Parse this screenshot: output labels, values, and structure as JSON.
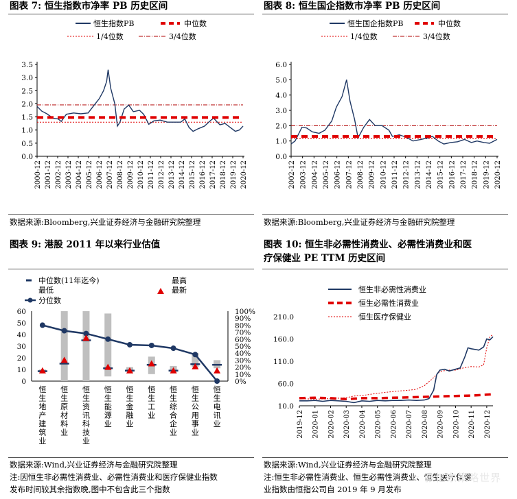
{
  "titles": {
    "c7": "图表 7:  恒生指数市净率 PB 历史区间",
    "c8": "图表 8:  恒生国企指数市净率 PB 历史区间",
    "c9": "图表 9:  港股 2011 年以来行业估值",
    "c10_line1": "图表 10:  恒生非必需性消费业、必需性消费业和医",
    "c10_line2": "疗保健业 PE TTM 历史区间"
  },
  "sources": {
    "c7": "数据来源:Bloomberg,兴业证券经济与金融研究院整理",
    "c8": "数据来源:Bloomberg,兴业证券经济与金融研究院整理",
    "c9": "数据来源:Wind,兴业证券经济与金融研究院整理",
    "c10": "数据来源:Wind,兴业证券经济与金融研究院整理"
  },
  "notes": {
    "left_line1": "注:因恒生非必需性消费业、必需性消费业和医疗保健业指数",
    "left_line2": "发布时间较其余指数晚,图中不包含此三个指数",
    "right_line1": "注:恒生非必需性消费业、恒生必需性消费业、恒生医疗保健",
    "right_line2": "业指数由恒指公司自 2019 年 9 月发布"
  },
  "watermark": "☆ 张忆东策略世界",
  "colors": {
    "navy": "#1f3864",
    "red": "#e00000",
    "gray": "#bfbfbf"
  },
  "chart_data": [
    {
      "id": "c7",
      "type": "line",
      "series": [
        {
          "name": "恒生指数PB",
          "kind": "data"
        },
        {
          "name": "中位数",
          "kind": "median",
          "value": 1.48
        },
        {
          "name": "1/4位数",
          "kind": "q1",
          "value": 1.3
        },
        {
          "name": "3/4位数",
          "kind": "q3",
          "value": 1.96
        }
      ],
      "x": [
        "2000-12",
        "2001-12",
        "2002-12",
        "2003-12",
        "2004-12",
        "2005-12",
        "2006-12",
        "2007-12",
        "2008-12",
        "2009-12",
        "2010-12",
        "2011-12",
        "2012-12",
        "2013-12",
        "2014-12",
        "2015-12",
        "2016-12",
        "2017-12",
        "2018-12",
        "2019-12",
        "2020-12"
      ],
      "yticks": [
        "0.0",
        "0.5",
        "1.0",
        "1.5",
        "2.0",
        "2.5",
        "3.0",
        "3.5"
      ],
      "ylim": [
        0,
        3.5
      ],
      "pb": [
        [
          2000.95,
          1.9
        ],
        [
          2001.4,
          1.72
        ],
        [
          2001.9,
          1.62
        ],
        [
          2002.5,
          1.45
        ],
        [
          2003.0,
          1.42
        ],
        [
          2003.3,
          1.33
        ],
        [
          2003.8,
          1.6
        ],
        [
          2004.5,
          1.65
        ],
        [
          2005.2,
          1.62
        ],
        [
          2005.9,
          1.65
        ],
        [
          2006.5,
          1.95
        ],
        [
          2007.0,
          2.2
        ],
        [
          2007.4,
          2.5
        ],
        [
          2007.7,
          2.85
        ],
        [
          2007.85,
          3.3
        ],
        [
          2008.1,
          2.6
        ],
        [
          2008.5,
          2.0
        ],
        [
          2008.75,
          1.15
        ],
        [
          2009.0,
          1.3
        ],
        [
          2009.4,
          1.8
        ],
        [
          2009.85,
          1.95
        ],
        [
          2010.3,
          1.7
        ],
        [
          2010.9,
          1.75
        ],
        [
          2011.3,
          1.6
        ],
        [
          2011.8,
          1.22
        ],
        [
          2012.3,
          1.35
        ],
        [
          2012.9,
          1.38
        ],
        [
          2013.6,
          1.3
        ],
        [
          2014.3,
          1.3
        ],
        [
          2014.9,
          1.3
        ],
        [
          2015.3,
          1.42
        ],
        [
          2015.7,
          1.1
        ],
        [
          2016.1,
          0.95
        ],
        [
          2016.6,
          1.05
        ],
        [
          2017.2,
          1.15
        ],
        [
          2017.9,
          1.4
        ],
        [
          2018.1,
          1.45
        ],
        [
          2018.7,
          1.2
        ],
        [
          2019.2,
          1.25
        ],
        [
          2019.7,
          1.1
        ],
        [
          2020.2,
          0.95
        ],
        [
          2020.6,
          1.0
        ],
        [
          2020.95,
          1.15
        ]
      ]
    },
    {
      "id": "c8",
      "type": "line",
      "series": [
        {
          "name": "恒生国企指数PB",
          "kind": "data"
        },
        {
          "name": "中位数",
          "kind": "median",
          "value": 1.3
        },
        {
          "name": "1/4位数",
          "kind": "q1",
          "value": 1.15
        },
        {
          "name": "3/4位数",
          "kind": "q3",
          "value": 2.0
        }
      ],
      "x": [
        "2002-12",
        "2003-12",
        "2004-12",
        "2005-12",
        "2006-12",
        "2007-12",
        "2008-12",
        "2009-12",
        "2010-12",
        "2011-12",
        "2012-12",
        "2013-12",
        "2014-12",
        "2015-12",
        "2016-12",
        "2017-12",
        "2018-12",
        "2019-12",
        "2020-12"
      ],
      "yticks": [
        "0.0",
        "1.0",
        "2.0",
        "3.0",
        "4.0",
        "5.0",
        "6.0"
      ],
      "ylim": [
        0,
        6
      ],
      "pb": [
        [
          2002.95,
          0.8
        ],
        [
          2003.3,
          1.0
        ],
        [
          2003.9,
          1.9
        ],
        [
          2004.3,
          1.85
        ],
        [
          2004.8,
          1.6
        ],
        [
          2005.4,
          1.5
        ],
        [
          2005.9,
          1.7
        ],
        [
          2006.5,
          2.3
        ],
        [
          2006.9,
          3.2
        ],
        [
          2007.4,
          3.9
        ],
        [
          2007.8,
          5.0
        ],
        [
          2008.1,
          3.6
        ],
        [
          2008.5,
          2.4
        ],
        [
          2008.8,
          1.2
        ],
        [
          2009.3,
          1.9
        ],
        [
          2009.8,
          2.4
        ],
        [
          2010.3,
          2.0
        ],
        [
          2010.9,
          2.0
        ],
        [
          2011.5,
          1.7
        ],
        [
          2011.8,
          1.3
        ],
        [
          2012.4,
          1.4
        ],
        [
          2013.0,
          1.25
        ],
        [
          2013.6,
          1.0
        ],
        [
          2014.3,
          1.1
        ],
        [
          2014.9,
          1.2
        ],
        [
          2015.3,
          1.3
        ],
        [
          2015.8,
          1.0
        ],
        [
          2016.3,
          0.8
        ],
        [
          2016.9,
          0.9
        ],
        [
          2017.5,
          0.95
        ],
        [
          2018.1,
          1.1
        ],
        [
          2018.7,
          0.9
        ],
        [
          2019.2,
          1.0
        ],
        [
          2019.8,
          0.9
        ],
        [
          2020.3,
          0.85
        ],
        [
          2020.95,
          1.1
        ]
      ]
    },
    {
      "id": "c9",
      "type": "bar",
      "legend": [
        {
          "name": "中位数(11年迄今)",
          "kind": "median"
        },
        {
          "name": "最高",
          "kind": "max"
        },
        {
          "name": "最低",
          "kind": "min"
        },
        {
          "name": "最新",
          "kind": "latest"
        },
        {
          "name": "分位数",
          "kind": "percentile"
        }
      ],
      "categories": [
        "恒生地产建筑业",
        "恒生原材料业",
        "恒生资讯科技业",
        "恒生能源业",
        "恒生金融业",
        "恒生工业",
        "恒生综合企业",
        "恒生公用事业",
        "恒生电讯业"
      ],
      "low": [
        7.5,
        0,
        0,
        4,
        8,
        6,
        8,
        12,
        11
      ],
      "high": [
        10,
        60,
        60,
        58,
        12,
        21,
        13,
        24,
        18
      ],
      "median": [
        8.5,
        15,
        35,
        11,
        9,
        14,
        9,
        14.5,
        14
      ],
      "latest": [
        9,
        18,
        37,
        12,
        9,
        15,
        9,
        12.5,
        9
      ],
      "percentile": [
        80,
        72,
        68,
        60,
        52,
        51,
        47,
        38,
        0
      ],
      "yticks_left": [
        "0",
        "10",
        "20",
        "30",
        "40",
        "50",
        "60"
      ],
      "yticks_right": [
        "0%",
        "10%",
        "20%",
        "30%",
        "40%",
        "50%",
        "60%",
        "70%",
        "80%",
        "90%",
        "100%"
      ],
      "ylim_left": [
        0,
        60
      ],
      "ylim_right": [
        0,
        100
      ]
    },
    {
      "id": "c10",
      "type": "line",
      "series": [
        {
          "name": "恒生非必需性消费业",
          "style": "solid-navy"
        },
        {
          "name": "恒生必需性消费业",
          "style": "dash-red"
        },
        {
          "name": "恒生医疗保健业",
          "style": "dotted-red"
        }
      ],
      "x": [
        "2019-12",
        "2020-01",
        "2020-02",
        "2020-03",
        "2020-04",
        "2020-05",
        "2020-06",
        "2020-07",
        "2020-08",
        "2020-09",
        "2020-10",
        "2020-11",
        "2020-12"
      ],
      "yticks": [
        "10.0",
        "60.0",
        "110.0",
        "160.0",
        "210.0"
      ],
      "ylim": [
        10,
        210
      ],
      "disc": [
        [
          0,
          21
        ],
        [
          0.5,
          21
        ],
        [
          1,
          22
        ],
        [
          1.5,
          20
        ],
        [
          2,
          22
        ],
        [
          2.5,
          21
        ],
        [
          3,
          20
        ],
        [
          3.5,
          17
        ],
        [
          4,
          21
        ],
        [
          4.5,
          20
        ],
        [
          5,
          22
        ],
        [
          5.5,
          21
        ],
        [
          6,
          22
        ],
        [
          6.5,
          22
        ],
        [
          7,
          23
        ],
        [
          7.5,
          22
        ],
        [
          8,
          23
        ],
        [
          8.3,
          26
        ],
        [
          8.6,
          45
        ],
        [
          8.8,
          80
        ],
        [
          9,
          90
        ],
        [
          9.3,
          92
        ],
        [
          9.6,
          88
        ],
        [
          10,
          92
        ],
        [
          10.3,
          95
        ],
        [
          10.6,
          120
        ],
        [
          10.8,
          140
        ],
        [
          11,
          138
        ],
        [
          11.5,
          135
        ],
        [
          11.8,
          142
        ],
        [
          12,
          160
        ],
        [
          12.2,
          158
        ],
        [
          12.4,
          165
        ]
      ],
      "staples": [
        [
          0,
          27
        ],
        [
          1,
          28
        ],
        [
          2,
          27
        ],
        [
          3,
          25
        ],
        [
          4,
          27
        ],
        [
          5,
          27
        ],
        [
          6,
          28
        ],
        [
          7,
          29
        ],
        [
          8,
          30
        ],
        [
          9,
          31
        ],
        [
          10,
          32
        ],
        [
          11,
          33
        ],
        [
          12,
          35
        ],
        [
          12.4,
          36
        ]
      ],
      "health": [
        [
          0,
          26
        ],
        [
          1,
          25
        ],
        [
          2,
          26
        ],
        [
          3,
          28
        ],
        [
          3.5,
          32
        ],
        [
          4,
          33
        ],
        [
          5,
          38
        ],
        [
          6,
          42
        ],
        [
          7,
          45
        ],
        [
          7.5,
          47
        ],
        [
          8,
          55
        ],
        [
          8.5,
          70
        ],
        [
          9,
          87
        ],
        [
          9.5,
          90
        ],
        [
          10,
          90
        ],
        [
          10.5,
          95
        ],
        [
          11,
          98
        ],
        [
          11.5,
          97
        ],
        [
          11.8,
          102
        ],
        [
          12,
          140
        ],
        [
          12.2,
          165
        ],
        [
          12.4,
          170
        ]
      ]
    }
  ]
}
